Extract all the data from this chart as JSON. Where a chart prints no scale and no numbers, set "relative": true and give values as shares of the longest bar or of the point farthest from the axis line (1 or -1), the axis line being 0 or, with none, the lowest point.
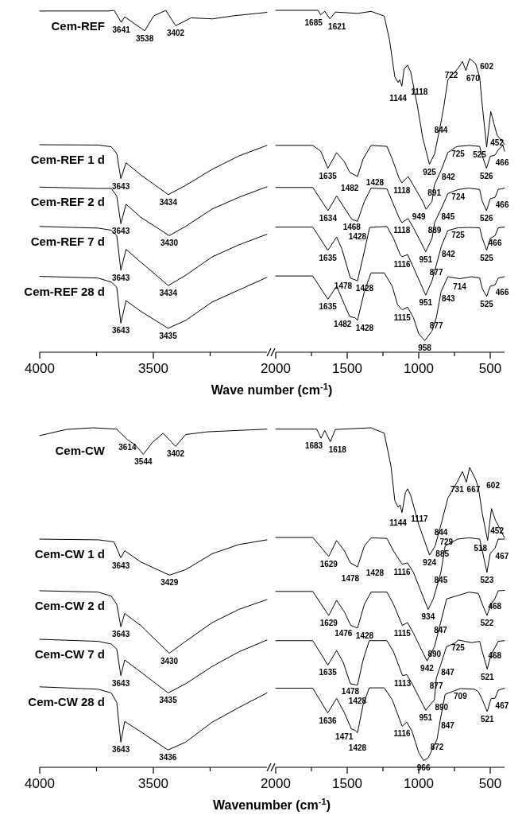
{
  "chart_data": [
    {
      "type": "line",
      "relative": true,
      "xlabel": "Wave number (cm$^{-1}$)",
      "xlim": [
        4000,
        3000
      ],
      "xticks": [
        4000,
        {
          "value": 3750,
          "label": null
        },
        3500,
        {
          "value": 3250,
          "label": null
        }
      ],
      "series": [
        {
          "name": "Cem-REF",
          "color": "#000000",
          "x": [
            4000,
            3700,
            3673,
            3641,
            3626,
            3538,
            3498,
            3445,
            3402,
            3334,
            3240,
            3147,
            3000
          ],
          "values": [
            0.998,
            0.998,
            1.0,
            0.965,
            0.981,
            0.94,
            0.984,
            1.0,
            0.955,
            0.978,
            0.975,
            0.984,
            0.994
          ]
        },
        {
          "name": "Cem-REF 1 d",
          "color": "#000000",
          "x": [
            4000,
            3743,
            3685,
            3661,
            3643,
            3620,
            3556,
            3434,
            3358,
            3241,
            3124,
            3000
          ],
          "values": [
            0.607,
            0.606,
            0.601,
            0.581,
            0.508,
            0.554,
            0.519,
            0.461,
            0.488,
            0.535,
            0.574,
            0.605
          ]
        },
        {
          "name": "Cem-REF 2 d",
          "color": "#000000",
          "x": [
            4000,
            3743,
            3685,
            3661,
            3643,
            3620,
            3556,
            3430,
            3358,
            3241,
            3124,
            3000
          ],
          "values": [
            0.483,
            0.479,
            0.479,
            0.457,
            0.376,
            0.433,
            0.395,
            0.341,
            0.368,
            0.419,
            0.453,
            0.484
          ]
        },
        {
          "name": "Cem-REF 7 d",
          "color": "#000000",
          "x": [
            4000,
            3743,
            3685,
            3661,
            3643,
            3620,
            3556,
            3434,
            3358,
            3241,
            3124,
            3000
          ],
          "values": [
            0.368,
            0.363,
            0.357,
            0.341,
            0.24,
            0.301,
            0.264,
            0.195,
            0.225,
            0.279,
            0.314,
            0.345
          ]
        },
        {
          "name": "Cem-REF 28 d",
          "color": "#000000",
          "x": [
            4000,
            3743,
            3685,
            3661,
            3643,
            3620,
            3556,
            3435,
            3358,
            3241,
            3124,
            3000
          ],
          "values": [
            0.222,
            0.217,
            0.205,
            0.19,
            0.085,
            0.151,
            0.12,
            0.07,
            0.093,
            0.147,
            0.182,
            0.219
          ]
        }
      ],
      "annotations": [
        {
          "text": "3641",
          "x": 3641,
          "y": 0.965
        },
        {
          "text": "3538",
          "x": 3538,
          "y": 0.94
        },
        {
          "text": "3402",
          "x": 3402,
          "y": 0.955
        },
        {
          "text": "3643",
          "x": 3643,
          "y": 0.508
        },
        {
          "text": "3434",
          "x": 3434,
          "y": 0.461
        },
        {
          "text": "3643",
          "x": 3643,
          "y": 0.376
        },
        {
          "text": "3430",
          "x": 3430,
          "y": 0.341
        },
        {
          "text": "3643",
          "x": 3643,
          "y": 0.24
        },
        {
          "text": "3434",
          "x": 3434,
          "y": 0.195
        },
        {
          "text": "3643",
          "x": 3643,
          "y": 0.085
        },
        {
          "text": "3435",
          "x": 3435,
          "y": 0.07
        }
      ]
    },
    {
      "type": "line",
      "relative": true,
      "xlim": [
        2000,
        400
      ],
      "xticks": [
        2000,
        {
          "value": 1750,
          "label": null
        },
        1500,
        {
          "value": 1250,
          "label": null
        },
        1000,
        {
          "value": 750,
          "label": null
        },
        500
      ],
      "series": [
        {
          "color": "#000000",
          "x": [
            2000,
            1704,
            1685,
            1657,
            1621,
            1583,
            1426,
            1333,
            1241,
            1204,
            1167,
            1144,
            1133,
            1118,
            1102,
            1078,
            1056,
            1009,
            972,
            925,
            889,
            844,
            824,
            796,
            722,
            694,
            670,
            644,
            602,
            574,
            555,
            525,
            509,
            496,
            472,
            452,
            400
          ],
          "values": [
            1.0,
            1.0,
            0.987,
            0.997,
            0.975,
            0.995,
            0.991,
            0.997,
            0.983,
            0.913,
            0.805,
            0.789,
            0.797,
            0.778,
            0.828,
            0.84,
            0.82,
            0.72,
            0.627,
            0.55,
            0.58,
            0.673,
            0.72,
            0.797,
            0.832,
            0.85,
            0.824,
            0.859,
            0.844,
            0.805,
            0.72,
            0.6,
            0.658,
            0.704,
            0.666,
            0.635,
            0.608
          ]
        },
        {
          "color": "#000000",
          "x": [
            2000,
            1741,
            1685,
            1635,
            1574,
            1519,
            1482,
            1428,
            1389,
            1333,
            1222,
            1185,
            1139,
            1118,
            1074,
            1037,
            972,
            949,
            907,
            891,
            842,
            796,
            741,
            725,
            648,
            574,
            555,
            526,
            500,
            466,
            444,
            411,
            400
          ],
          "values": [
            0.605,
            0.605,
            0.588,
            0.538,
            0.584,
            0.557,
            0.526,
            0.514,
            0.565,
            0.605,
            0.602,
            0.565,
            0.511,
            0.495,
            0.514,
            0.488,
            0.441,
            0.418,
            0.441,
            0.488,
            0.534,
            0.584,
            0.6,
            0.602,
            0.605,
            0.602,
            0.573,
            0.538,
            0.573,
            0.577,
            0.592,
            0.605,
            0.588
          ]
        },
        {
          "color": "#000000",
          "x": [
            2000,
            1741,
            1634,
            1574,
            1468,
            1428,
            1380,
            1333,
            1222,
            1185,
            1139,
            1118,
            1074,
            1037,
            951,
            907,
            889,
            845,
            796,
            724,
            648,
            574,
            555,
            526,
            500,
            466,
            444,
            400
          ],
          "values": [
            0.482,
            0.482,
            0.414,
            0.457,
            0.389,
            0.383,
            0.441,
            0.48,
            0.478,
            0.441,
            0.395,
            0.379,
            0.391,
            0.364,
            0.294,
            0.333,
            0.379,
            0.418,
            0.464,
            0.476,
            0.48,
            0.476,
            0.441,
            0.414,
            0.449,
            0.453,
            0.476,
            0.48
          ]
        },
        {
          "color": "#000000",
          "x": [
            2000,
            1741,
            1635,
            1574,
            1537,
            1478,
            1428,
            1385,
            1343,
            1222,
            1176,
            1130,
            1116,
            1078,
            1037,
            951,
            907,
            877,
            842,
            796,
            725,
            648,
            574,
            555,
            525,
            500,
            466,
            444,
            400
          ],
          "values": [
            0.366,
            0.366,
            0.298,
            0.337,
            0.302,
            0.217,
            0.209,
            0.286,
            0.365,
            0.368,
            0.333,
            0.286,
            0.279,
            0.286,
            0.248,
            0.167,
            0.209,
            0.255,
            0.31,
            0.356,
            0.364,
            0.365,
            0.364,
            0.333,
            0.298,
            0.333,
            0.341,
            0.364,
            0.366
          ]
        },
        {
          "color": "#000000",
          "x": [
            2000,
            1741,
            1635,
            1574,
            1519,
            1482,
            1445,
            1428,
            1380,
            1333,
            1241,
            1185,
            1148,
            1115,
            1078,
            1037,
            1000,
            958,
            907,
            877,
            843,
            796,
            714,
            630,
            574,
            555,
            525,
            500,
            466,
            444,
            400
          ],
          "values": [
            0.223,
            0.223,
            0.155,
            0.193,
            0.139,
            0.104,
            0.101,
            0.093,
            0.178,
            0.232,
            0.232,
            0.193,
            0.139,
            0.124,
            0.132,
            0.101,
            0.054,
            0.034,
            0.062,
            0.101,
            0.178,
            0.221,
            0.215,
            0.221,
            0.217,
            0.186,
            0.163,
            0.193,
            0.197,
            0.217,
            0.221
          ]
        }
      ],
      "annotations": [
        {
          "text": "1685",
          "x": 1685,
          "y": 0.987
        },
        {
          "text": "1621",
          "x": 1621,
          "y": 0.975
        },
        {
          "text": "1144",
          "x": 1144,
          "y": 0.789
        },
        {
          "text": "1118",
          "x": 1118,
          "y": 0.778
        },
        {
          "text": "925",
          "x": 925,
          "y": 0.55
        },
        {
          "text": "844",
          "x": 844,
          "y": 0.673
        },
        {
          "text": "722",
          "x": 722,
          "y": 0.832
        },
        {
          "text": "670",
          "x": 670,
          "y": 0.824
        },
        {
          "text": "602",
          "x": 602,
          "y": 0.844
        },
        {
          "text": "525",
          "x": 525,
          "y": 0.6
        },
        {
          "text": "452",
          "x": 452,
          "y": 0.635
        },
        {
          "text": "1635",
          "x": 1635,
          "y": 0.538
        },
        {
          "text": "1482",
          "x": 1482,
          "y": 0.526
        },
        {
          "text": "1428",
          "x": 1428,
          "y": 0.514
        },
        {
          "text": "1118",
          "x": 1118,
          "y": 0.495
        },
        {
          "text": "949",
          "x": 949,
          "y": 0.418
        },
        {
          "text": "891",
          "x": 891,
          "y": 0.488
        },
        {
          "text": "842",
          "x": 842,
          "y": 0.534
        },
        {
          "text": "725",
          "x": 725,
          "y": 0.602
        },
        {
          "text": "526",
          "x": 526,
          "y": 0.538
        },
        {
          "text": "466",
          "x": 466,
          "y": 0.577
        },
        {
          "text": "1634",
          "x": 1634,
          "y": 0.414
        },
        {
          "text": "1468",
          "x": 1468,
          "y": 0.389
        },
        {
          "text": "1428",
          "x": 1428,
          "y": 0.383
        },
        {
          "text": "1118",
          "x": 1118,
          "y": 0.379
        },
        {
          "text": "951",
          "x": 951,
          "y": 0.294
        },
        {
          "text": "889",
          "x": 889,
          "y": 0.379
        },
        {
          "text": "845",
          "x": 845,
          "y": 0.418
        },
        {
          "text": "724",
          "x": 724,
          "y": 0.476
        },
        {
          "text": "526",
          "x": 526,
          "y": 0.414
        },
        {
          "text": "466",
          "x": 466,
          "y": 0.453
        },
        {
          "text": "1635",
          "x": 1635,
          "y": 0.298
        },
        {
          "text": "1478",
          "x": 1478,
          "y": 0.217
        },
        {
          "text": "1428",
          "x": 1428,
          "y": 0.209
        },
        {
          "text": "1116",
          "x": 1116,
          "y": 0.279
        },
        {
          "text": "951",
          "x": 951,
          "y": 0.167
        },
        {
          "text": "877",
          "x": 877,
          "y": 0.255
        },
        {
          "text": "842",
          "x": 842,
          "y": 0.31
        },
        {
          "text": "725",
          "x": 725,
          "y": 0.364
        },
        {
          "text": "525",
          "x": 525,
          "y": 0.298
        },
        {
          "text": "466",
          "x": 466,
          "y": 0.341
        },
        {
          "text": "1635",
          "x": 1635,
          "y": 0.155
        },
        {
          "text": "1482",
          "x": 1482,
          "y": 0.104
        },
        {
          "text": "1428",
          "x": 1428,
          "y": 0.093
        },
        {
          "text": "1115",
          "x": 1115,
          "y": 0.124
        },
        {
          "text": "958",
          "x": 958,
          "y": 0.034
        },
        {
          "text": "877",
          "x": 877,
          "y": 0.101
        },
        {
          "text": "843",
          "x": 843,
          "y": 0.178
        },
        {
          "text": "714",
          "x": 714,
          "y": 0.215
        },
        {
          "text": "525",
          "x": 525,
          "y": 0.163
        },
        {
          "text": "466",
          "x": 466,
          "y": 0.197
        }
      ]
    },
    {
      "type": "line",
      "relative": true,
      "xlabel": "Wavenumber (cm$^{-1}$)",
      "xlim": [
        4000,
        3000
      ],
      "xticks": [
        4000,
        {
          "value": 3750,
          "label": null
        },
        3500,
        {
          "value": 3250,
          "label": null
        }
      ],
      "series": [
        {
          "name": "Cem-CW",
          "color": "#000000",
          "x": [
            4000,
            3883,
            3766,
            3661,
            3614,
            3579,
            3544,
            3504,
            3457,
            3402,
            3358,
            3264,
            3000
          ],
          "values": [
            0.977,
            0.995,
            1.0,
            0.996,
            0.965,
            0.949,
            0.922,
            0.957,
            0.984,
            0.945,
            0.98,
            0.988,
            0.996
          ]
        },
        {
          "name": "Cem-CW 1 d",
          "color": "#000000",
          "x": [
            4000,
            3743,
            3673,
            3643,
            3626,
            3556,
            3429,
            3358,
            3241,
            3124,
            3000
          ],
          "values": [
            0.672,
            0.67,
            0.664,
            0.617,
            0.638,
            0.605,
            0.566,
            0.582,
            0.629,
            0.656,
            0.67
          ]
        },
        {
          "name": "Cem-CW 2 d",
          "color": "#000000",
          "x": [
            4000,
            3743,
            3685,
            3661,
            3643,
            3626,
            3556,
            3430,
            3358,
            3241,
            3124,
            3000
          ],
          "values": [
            0.52,
            0.516,
            0.504,
            0.48,
            0.414,
            0.453,
            0.418,
            0.336,
            0.371,
            0.426,
            0.465,
            0.494
          ]
        },
        {
          "name": "Cem-CW 7 d",
          "color": "#000000",
          "x": [
            4000,
            3743,
            3685,
            3661,
            3643,
            3626,
            3556,
            3435,
            3358,
            3241,
            3124,
            3000
          ],
          "values": [
            0.377,
            0.371,
            0.363,
            0.348,
            0.27,
            0.316,
            0.281,
            0.219,
            0.246,
            0.297,
            0.34,
            0.375
          ]
        },
        {
          "name": "Cem-CW 28 d",
          "color": "#000000",
          "x": [
            4000,
            3743,
            3685,
            3661,
            3643,
            3626,
            3556,
            3436,
            3358,
            3241,
            3124,
            3000
          ],
          "values": [
            0.237,
            0.23,
            0.219,
            0.191,
            0.074,
            0.135,
            0.105,
            0.051,
            0.074,
            0.133,
            0.176,
            0.219
          ]
        }
      ],
      "annotations": [
        {
          "text": "3614",
          "x": 3614,
          "y": 0.965
        },
        {
          "text": "3544",
          "x": 3544,
          "y": 0.922
        },
        {
          "text": "3402",
          "x": 3402,
          "y": 0.945
        },
        {
          "text": "3643",
          "x": 3643,
          "y": 0.617
        },
        {
          "text": "3429",
          "x": 3429,
          "y": 0.566
        },
        {
          "text": "3643",
          "x": 3643,
          "y": 0.414
        },
        {
          "text": "3430",
          "x": 3430,
          "y": 0.336
        },
        {
          "text": "3643",
          "x": 3643,
          "y": 0.27
        },
        {
          "text": "3435",
          "x": 3435,
          "y": 0.219
        },
        {
          "text": "3643",
          "x": 3643,
          "y": 0.074
        },
        {
          "text": "3436",
          "x": 3436,
          "y": 0.051
        }
      ]
    },
    {
      "type": "line",
      "relative": true,
      "xlim": [
        2000,
        400
      ],
      "xticks": [
        2000,
        {
          "value": 1750,
          "label": null
        },
        1500,
        {
          "value": 1250,
          "label": null
        },
        1000,
        {
          "value": 750,
          "label": null
        },
        500
      ],
      "series": [
        {
          "color": "#000000",
          "x": [
            2000,
            1713,
            1683,
            1657,
            1618,
            1583,
            1333,
            1241,
            1194,
            1167,
            1144,
            1130,
            1117,
            1093,
            1078,
            1056,
            1000,
            924,
            885,
            844,
            796,
            731,
            694,
            667,
            644,
            602,
            583,
            555,
            518,
            505,
            491,
            463,
            452,
            400
          ],
          "values": [
            0.996,
            0.996,
            0.969,
            0.992,
            0.959,
            0.995,
            1.0,
            0.984,
            0.887,
            0.785,
            0.766,
            0.773,
            0.75,
            0.809,
            0.82,
            0.801,
            0.715,
            0.625,
            0.652,
            0.715,
            0.793,
            0.84,
            0.871,
            0.84,
            0.883,
            0.848,
            0.824,
            0.746,
            0.668,
            0.715,
            0.762,
            0.727,
            0.719,
            0.676
          ]
        },
        {
          "color": "#000000",
          "x": [
            2000,
            1741,
            1629,
            1574,
            1519,
            1478,
            1428,
            1380,
            1333,
            1222,
            1176,
            1116,
            1078,
            1037,
            934,
            898,
            845,
            815,
            729,
            648,
            574,
            555,
            523,
            500,
            467,
            444,
            400
          ],
          "values": [
            0.677,
            0.677,
            0.621,
            0.668,
            0.637,
            0.602,
            0.59,
            0.652,
            0.676,
            0.674,
            0.637,
            0.598,
            0.602,
            0.574,
            0.465,
            0.496,
            0.574,
            0.652,
            0.672,
            0.676,
            0.672,
            0.637,
            0.574,
            0.63,
            0.645,
            0.672,
            0.672
          ]
        },
        {
          "color": "#000000",
          "x": [
            2000,
            1741,
            1629,
            1574,
            1519,
            1476,
            1428,
            1380,
            1333,
            1222,
            1176,
            1115,
            1078,
            1037,
            942,
            890,
            847,
            805,
            741,
            648,
            583,
            555,
            522,
            496,
            468,
            444,
            400
          ],
          "values": [
            0.518,
            0.518,
            0.447,
            0.492,
            0.457,
            0.418,
            0.41,
            0.48,
            0.516,
            0.516,
            0.48,
            0.418,
            0.426,
            0.395,
            0.313,
            0.355,
            0.426,
            0.496,
            0.504,
            0.516,
            0.512,
            0.48,
            0.447,
            0.48,
            0.496,
            0.52,
            0.521
          ]
        },
        {
          "color": "#000000",
          "x": [
            2000,
            1741,
            1635,
            1574,
            1528,
            1478,
            1428,
            1389,
            1346,
            1222,
            1176,
            1113,
            1083,
            1046,
            951,
            890,
            877,
            847,
            806,
            741,
            725,
            630,
            574,
            555,
            521,
            494,
            468,
            444,
            400
          ],
          "values": [
            0.373,
            0.373,
            0.301,
            0.344,
            0.309,
            0.246,
            0.242,
            0.316,
            0.373,
            0.373,
            0.34,
            0.27,
            0.273,
            0.246,
            0.168,
            0.199,
            0.262,
            0.301,
            0.355,
            0.367,
            0.375,
            0.367,
            0.371,
            0.34,
            0.289,
            0.332,
            0.352,
            0.371,
            0.373
          ]
        },
        {
          "color": "#000000",
          "x": [
            2000,
            1741,
            1636,
            1574,
            1519,
            1471,
            1445,
            1428,
            1389,
            1346,
            1241,
            1185,
            1116,
            1083,
            1046,
            1000,
            966,
            935,
            872,
            847,
            815,
            709,
            611,
            583,
            555,
            521,
            494,
            467,
            444,
            400
          ],
          "values": [
            0.233,
            0.233,
            0.16,
            0.203,
            0.16,
            0.113,
            0.109,
            0.102,
            0.184,
            0.234,
            0.234,
            0.199,
            0.121,
            0.133,
            0.105,
            0.043,
            0.02,
            0.027,
            0.082,
            0.145,
            0.215,
            0.232,
            0.23,
            0.223,
            0.199,
            0.164,
            0.203,
            0.203,
            0.227,
            0.233
          ]
        }
      ],
      "annotations": [
        {
          "text": "1683",
          "x": 1683,
          "y": 0.969
        },
        {
          "text": "1618",
          "x": 1618,
          "y": 0.959
        },
        {
          "text": "1144",
          "x": 1144,
          "y": 0.766
        },
        {
          "text": "1117",
          "x": 1117,
          "y": 0.75
        },
        {
          "text": "924",
          "x": 924,
          "y": 0.625
        },
        {
          "text": "885",
          "x": 885,
          "y": 0.652
        },
        {
          "text": "844",
          "x": 844,
          "y": 0.715
        },
        {
          "text": "731",
          "x": 731,
          "y": 0.84
        },
        {
          "text": "667",
          "x": 667,
          "y": 0.84
        },
        {
          "text": "602",
          "x": 602,
          "y": 0.848
        },
        {
          "text": "518",
          "x": 518,
          "y": 0.668
        },
        {
          "text": "452",
          "x": 452,
          "y": 0.719
        },
        {
          "text": "1629",
          "x": 1629,
          "y": 0.621
        },
        {
          "text": "1478",
          "x": 1478,
          "y": 0.602
        },
        {
          "text": "1428",
          "x": 1428,
          "y": 0.59
        },
        {
          "text": "1116",
          "x": 1116,
          "y": 0.598
        },
        {
          "text": "934",
          "x": 934,
          "y": 0.465
        },
        {
          "text": "845",
          "x": 845,
          "y": 0.574
        },
        {
          "text": "729",
          "x": 729,
          "y": 0.672
        },
        {
          "text": "523",
          "x": 523,
          "y": 0.574
        },
        {
          "text": "467",
          "x": 467,
          "y": 0.645
        },
        {
          "text": "1629",
          "x": 1629,
          "y": 0.447
        },
        {
          "text": "1476",
          "x": 1476,
          "y": 0.418
        },
        {
          "text": "1428",
          "x": 1428,
          "y": 0.41
        },
        {
          "text": "1115",
          "x": 1115,
          "y": 0.418
        },
        {
          "text": "942",
          "x": 942,
          "y": 0.313
        },
        {
          "text": "890",
          "x": 890,
          "y": 0.355
        },
        {
          "text": "847",
          "x": 847,
          "y": 0.426
        },
        {
          "text": "522",
          "x": 522,
          "y": 0.447
        },
        {
          "text": "468",
          "x": 468,
          "y": 0.496
        },
        {
          "text": "1635",
          "x": 1635,
          "y": 0.301
        },
        {
          "text": "1478",
          "x": 1478,
          "y": 0.246
        },
        {
          "text": "1428",
          "x": 1428,
          "y": 0.242
        },
        {
          "text": "1113",
          "x": 1113,
          "y": 0.27
        },
        {
          "text": "951",
          "x": 951,
          "y": 0.168
        },
        {
          "text": "890",
          "x": 890,
          "y": 0.199
        },
        {
          "text": "725",
          "x": 725,
          "y": 0.375
        },
        {
          "text": "847",
          "x": 847,
          "y": 0.301
        },
        {
          "text": "877",
          "x": 877,
          "y": 0.262
        },
        {
          "text": "521",
          "x": 521,
          "y": 0.289
        },
        {
          "text": "468",
          "x": 468,
          "y": 0.352
        },
        {
          "text": "1636",
          "x": 1636,
          "y": 0.16
        },
        {
          "text": "709",
          "x": 709,
          "y": 0.232
        },
        {
          "text": "467",
          "x": 467,
          "y": 0.203
        },
        {
          "text": "847",
          "x": 847,
          "y": 0.145
        },
        {
          "text": "1471",
          "x": 1471,
          "y": 0.113
        },
        {
          "text": "1428",
          "x": 1428,
          "y": 0.102
        },
        {
          "text": "1116",
          "x": 1116,
          "y": 0.121
        },
        {
          "text": "872",
          "x": 872,
          "y": 0.082
        },
        {
          "text": "966",
          "x": 966,
          "y": 0.02
        },
        {
          "text": "521",
          "x": 521,
          "y": 0.164
        }
      ]
    }
  ]
}
